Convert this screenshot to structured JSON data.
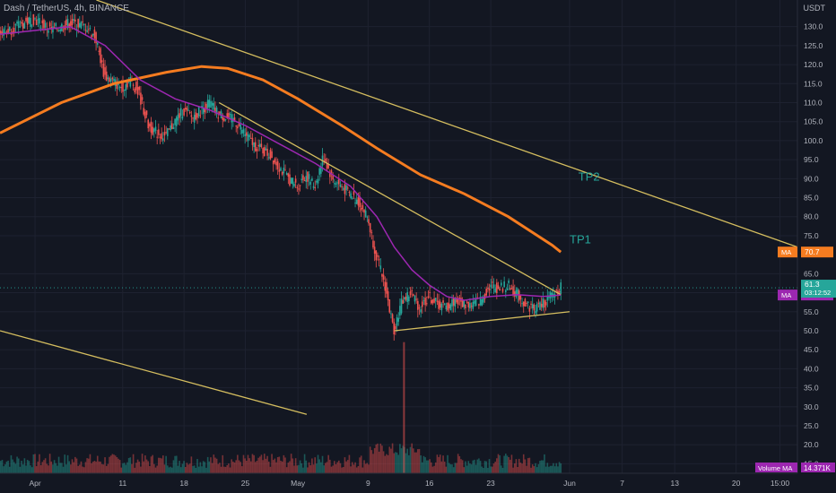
{
  "header": {
    "symbol": "Dash / TetherUS, 4h, BINANCE"
  },
  "price_axis": {
    "unit": "USDT"
  },
  "colors": {
    "background": "#131722",
    "up": "#26a69a",
    "down": "#ef5350",
    "ma_slow": "#f57c20",
    "ma_fast": "#9c27b0",
    "trendline": "#d4bd5f",
    "tp_label": "#26a69a"
  },
  "chart_data": {
    "type": "line",
    "title": "",
    "x_ticks": [
      {
        "label": "Apr",
        "day": 1
      },
      {
        "label": "11",
        "day": 11
      },
      {
        "label": "18",
        "day": 18
      },
      {
        "label": "25",
        "day": 25
      },
      {
        "label": "May",
        "day": 31
      },
      {
        "label": "9",
        "day": 39
      },
      {
        "label": "16",
        "day": 46
      },
      {
        "label": "23",
        "day": 53
      },
      {
        "label": "Jun",
        "day": 62
      },
      {
        "label": "7",
        "day": 68
      },
      {
        "label": "13",
        "day": 74
      },
      {
        "label": "20",
        "day": 81
      },
      {
        "label": "15:00",
        "day": 86
      }
    ],
    "y_ticks": [
      130,
      125,
      120,
      115,
      110,
      105,
      100,
      95,
      90,
      85,
      80,
      75,
      65,
      60,
      55,
      50,
      45,
      40,
      35,
      30,
      25,
      20,
      15
    ],
    "y_tick_labels": [
      "130.0",
      "125.0",
      "120.0",
      "115.0",
      "110.0",
      "105.0",
      "100.0",
      "95.0",
      "90.0",
      "85.0",
      "80.0",
      "75.0",
      "65.0",
      "60.0",
      "55.0",
      "50.0",
      "45.0",
      "40.0",
      "35.0",
      "30.0",
      "25.0",
      "20.0",
      "15.0"
    ],
    "ylim": [
      12.5,
      137
    ],
    "xlim": [
      -3,
      88
    ],
    "price_path": [
      [
        -3,
        128
      ],
      [
        1,
        132
      ],
      [
        3,
        129
      ],
      [
        5,
        131
      ],
      [
        7,
        130
      ],
      [
        8,
        127
      ],
      [
        9,
        117
      ],
      [
        11,
        114
      ],
      [
        12,
        116
      ],
      [
        13,
        112
      ],
      [
        14,
        104
      ],
      [
        15,
        102
      ],
      [
        16,
        101
      ],
      [
        17,
        105
      ],
      [
        18,
        108
      ],
      [
        19,
        106
      ],
      [
        21,
        110
      ],
      [
        22,
        107
      ],
      [
        24,
        105
      ],
      [
        25,
        102
      ],
      [
        26,
        99
      ],
      [
        28,
        96
      ],
      [
        29,
        93
      ],
      [
        30,
        90
      ],
      [
        31,
        88
      ],
      [
        32,
        91
      ],
      [
        33,
        88
      ],
      [
        34,
        96
      ],
      [
        35,
        90
      ],
      [
        36,
        88
      ],
      [
        37,
        86
      ],
      [
        38,
        84
      ],
      [
        39,
        80
      ],
      [
        40,
        70
      ],
      [
        41,
        62
      ],
      [
        42,
        50
      ],
      [
        43,
        58
      ],
      [
        44,
        60
      ],
      [
        45,
        56
      ],
      [
        46,
        59
      ],
      [
        47,
        57
      ],
      [
        48,
        56
      ],
      [
        49,
        58
      ],
      [
        50,
        57
      ],
      [
        51,
        57
      ],
      [
        52,
        58
      ],
      [
        53,
        62
      ],
      [
        54,
        61
      ],
      [
        55,
        62
      ],
      [
        56,
        60
      ],
      [
        57,
        57
      ],
      [
        58,
        56
      ],
      [
        59,
        57
      ],
      [
        60,
        59
      ],
      [
        61,
        61.3
      ]
    ],
    "ma_slow": [
      [
        -3,
        102
      ],
      [
        4,
        110
      ],
      [
        10,
        115
      ],
      [
        16,
        118
      ],
      [
        20,
        119.5
      ],
      [
        23,
        119
      ],
      [
        27,
        116
      ],
      [
        31,
        111
      ],
      [
        36,
        104
      ],
      [
        40,
        98
      ],
      [
        45,
        91
      ],
      [
        50,
        86
      ],
      [
        55,
        80
      ],
      [
        60,
        72.5
      ],
      [
        61,
        70.7
      ]
    ],
    "ma_slow_label": "70.7",
    "ma_fast": [
      [
        -3,
        128
      ],
      [
        5,
        130
      ],
      [
        9,
        125
      ],
      [
        13,
        116
      ],
      [
        17,
        111
      ],
      [
        21,
        108
      ],
      [
        25,
        104
      ],
      [
        29,
        99
      ],
      [
        33,
        94
      ],
      [
        37,
        88
      ],
      [
        40,
        80
      ],
      [
        42,
        72
      ],
      [
        44,
        66
      ],
      [
        46,
        62
      ],
      [
        48,
        59
      ],
      [
        50,
        58
      ],
      [
        53,
        59
      ],
      [
        56,
        59.5
      ],
      [
        59,
        59
      ],
      [
        61,
        59.4
      ]
    ],
    "ma_fast_label": "59.4",
    "last_price": "61.3",
    "countdown": "03:12:52",
    "ma_tag": "MA",
    "trendlines": [
      [
        [
          8,
          137
        ],
        [
          88,
          72
        ]
      ],
      [
        [
          22,
          110
        ],
        [
          61,
          59.5
        ]
      ],
      [
        [
          42,
          50
        ],
        [
          62,
          55
        ]
      ],
      [
        [
          -3,
          50
        ],
        [
          32,
          28
        ]
      ]
    ],
    "targets": [
      {
        "label": "TP2",
        "day": 63,
        "price": 89.5
      },
      {
        "label": "TP1",
        "day": 62,
        "price": 73
      }
    ],
    "volume": {
      "label": "Volume MA",
      "value": "14.371K",
      "spike_day": 43,
      "spike_price": 47
    }
  }
}
